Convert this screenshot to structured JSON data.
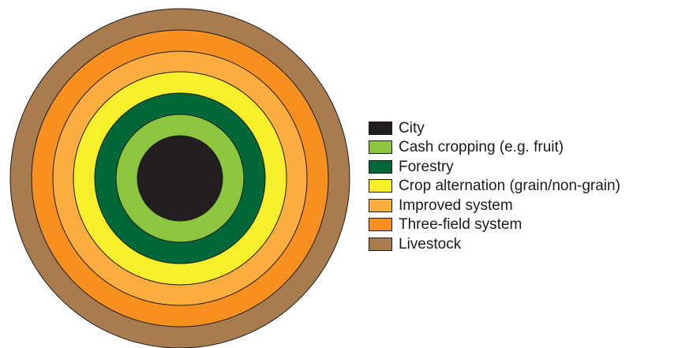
{
  "zones": [
    {
      "label": "City",
      "color": "#231f20"
    },
    {
      "label": "Cash cropping (e.g. fruit)",
      "color": "#8cc63f"
    },
    {
      "label": "Forestry",
      "color": "#006838"
    },
    {
      "label": "Crop alternation (grain/non-grain)",
      "color": "#f7ee2c"
    },
    {
      "label": "Improved system",
      "color": "#fbad3f"
    },
    {
      "label": "Three-field system",
      "color": "#f7901e"
    },
    {
      "label": "Livestock",
      "color": "#a97c50"
    }
  ],
  "ring_outline_color": "#1a1a1a"
}
